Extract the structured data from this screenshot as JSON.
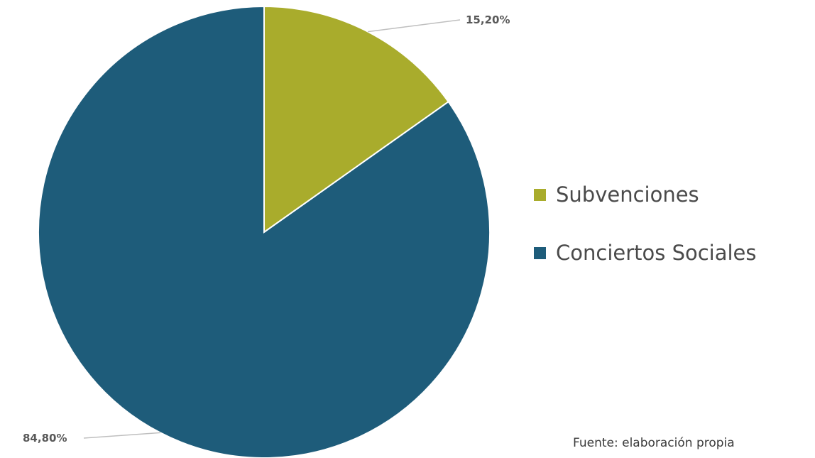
{
  "chart_data": {
    "type": "pie",
    "categories": [
      "Subvenciones",
      "Conciertos Sociales"
    ],
    "values": [
      15.2,
      84.8
    ],
    "data_labels": [
      "15,20%",
      "84,80%"
    ],
    "colors": [
      "#a9ac2c",
      "#1e5c7a"
    ],
    "start_angle_deg": 0,
    "direction": "clockwise",
    "legend": {
      "placement": "right",
      "entries": [
        "Subvenciones",
        "Conciertos Sociales"
      ]
    }
  },
  "source_note": "Fuente: elaboración propia"
}
